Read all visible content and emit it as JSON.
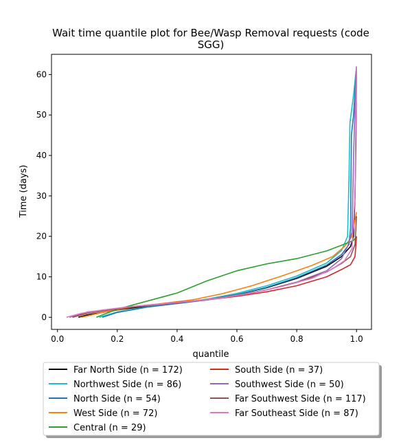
{
  "chart_data": {
    "type": "line",
    "title_lines": [
      "Wait time quantile plot for Bee/Wasp Removal  requests (code",
      "SGG)"
    ],
    "xlabel": "quantile",
    "ylabel": "Time (days)",
    "xlim": [
      -0.02,
      1.05
    ],
    "ylim": [
      -3,
      65
    ],
    "xticks": [
      0.0,
      0.2,
      0.4,
      0.6,
      0.8,
      1.0
    ],
    "xtick_labels": [
      "0.0",
      "0.2",
      "0.4",
      "0.6",
      "0.8",
      "1.0"
    ],
    "yticks": [
      0,
      10,
      20,
      30,
      40,
      50,
      60
    ],
    "ytick_labels": [
      "0",
      "10",
      "20",
      "30",
      "40",
      "50",
      "60"
    ],
    "legend_placement": "below plot, two columns",
    "series": [
      {
        "name": "Far North Side (n = 172)",
        "color": "#000000",
        "points": [
          [
            0.07,
            0
          ],
          [
            0.1,
            0.6
          ],
          [
            0.2,
            1.8
          ],
          [
            0.3,
            2.8
          ],
          [
            0.4,
            3.5
          ],
          [
            0.5,
            4.3
          ],
          [
            0.6,
            5.6
          ],
          [
            0.7,
            7.3
          ],
          [
            0.8,
            9.6
          ],
          [
            0.9,
            12.6
          ],
          [
            0.95,
            15
          ],
          [
            0.98,
            17.5
          ],
          [
            0.99,
            20
          ],
          [
            0.995,
            30
          ],
          [
            0.998,
            45
          ],
          [
            1.0,
            62
          ]
        ]
      },
      {
        "name": "Northwest Side (n = 86)",
        "color": "#17becf",
        "points": [
          [
            0.14,
            0
          ],
          [
            0.2,
            1.3
          ],
          [
            0.3,
            2.6
          ],
          [
            0.4,
            3.5
          ],
          [
            0.5,
            4.5
          ],
          [
            0.6,
            5.9
          ],
          [
            0.7,
            7.8
          ],
          [
            0.8,
            10.2
          ],
          [
            0.9,
            13.4
          ],
          [
            0.95,
            16.5
          ],
          [
            0.97,
            20
          ],
          [
            0.975,
            35
          ],
          [
            0.978,
            48
          ],
          [
            0.99,
            55
          ],
          [
            1.0,
            62
          ]
        ]
      },
      {
        "name": "North Side (n = 54)",
        "color": "#1f77b4",
        "points": [
          [
            0.15,
            0
          ],
          [
            0.2,
            1.2
          ],
          [
            0.3,
            2.5
          ],
          [
            0.4,
            3.4
          ],
          [
            0.5,
            4.3
          ],
          [
            0.6,
            5.6
          ],
          [
            0.7,
            7.4
          ],
          [
            0.8,
            9.8
          ],
          [
            0.9,
            12.9
          ],
          [
            0.95,
            15.5
          ],
          [
            0.975,
            18
          ],
          [
            0.98,
            22
          ],
          [
            0.983,
            45
          ],
          [
            0.99,
            50
          ],
          [
            1.0,
            62
          ]
        ]
      },
      {
        "name": "West Side (n = 72)",
        "color": "#ff7f0e",
        "points": [
          [
            0.08,
            0
          ],
          [
            0.15,
            1.2
          ],
          [
            0.25,
            2.5
          ],
          [
            0.35,
            3.4
          ],
          [
            0.45,
            4.3
          ],
          [
            0.55,
            5.8
          ],
          [
            0.65,
            7.8
          ],
          [
            0.75,
            10.2
          ],
          [
            0.85,
            12.8
          ],
          [
            0.92,
            15
          ],
          [
            0.96,
            17.5
          ],
          [
            0.985,
            20
          ],
          [
            0.995,
            24
          ],
          [
            1.0,
            26
          ]
        ]
      },
      {
        "name": "Central (n = 29)",
        "color": "#2ca02c",
        "points": [
          [
            0.13,
            0
          ],
          [
            0.2,
            2
          ],
          [
            0.3,
            4
          ],
          [
            0.4,
            6
          ],
          [
            0.5,
            9
          ],
          [
            0.6,
            11.5
          ],
          [
            0.7,
            13.2
          ],
          [
            0.8,
            14.5
          ],
          [
            0.9,
            16.4
          ],
          [
            0.95,
            17.8
          ],
          [
            0.99,
            19
          ],
          [
            1.0,
            20
          ]
        ]
      },
      {
        "name": "South Side (n = 37)",
        "color": "#d62728",
        "points": [
          [
            0.05,
            0
          ],
          [
            0.1,
            1
          ],
          [
            0.2,
            2.1
          ],
          [
            0.3,
            3
          ],
          [
            0.4,
            3.7
          ],
          [
            0.5,
            4.3
          ],
          [
            0.6,
            5.2
          ],
          [
            0.7,
            6.3
          ],
          [
            0.8,
            7.8
          ],
          [
            0.9,
            10
          ],
          [
            0.95,
            11.8
          ],
          [
            0.98,
            13
          ],
          [
            0.995,
            15
          ],
          [
            1.0,
            20
          ]
        ]
      },
      {
        "name": "Southwest Side (n = 50)",
        "color": "#9467bd",
        "points": [
          [
            0.04,
            0
          ],
          [
            0.1,
            1.3
          ],
          [
            0.2,
            2.2
          ],
          [
            0.3,
            3
          ],
          [
            0.4,
            3.6
          ],
          [
            0.5,
            4.3
          ],
          [
            0.6,
            5.4
          ],
          [
            0.7,
            6.8
          ],
          [
            0.8,
            8.7
          ],
          [
            0.9,
            11.5
          ],
          [
            0.95,
            14.5
          ],
          [
            0.97,
            17.5
          ],
          [
            0.985,
            21
          ],
          [
            0.99,
            40
          ],
          [
            0.995,
            52
          ],
          [
            1.0,
            62
          ]
        ]
      },
      {
        "name": "Far Southwest Side (n = 117)",
        "color": "#8c564b",
        "points": [
          [
            0.05,
            0
          ],
          [
            0.1,
            1.1
          ],
          [
            0.2,
            2.1
          ],
          [
            0.3,
            2.9
          ],
          [
            0.4,
            3.6
          ],
          [
            0.5,
            4.4
          ],
          [
            0.6,
            5.4
          ],
          [
            0.7,
            6.8
          ],
          [
            0.8,
            8.6
          ],
          [
            0.9,
            11.2
          ],
          [
            0.95,
            13.3
          ],
          [
            0.98,
            15
          ],
          [
            0.995,
            18
          ],
          [
            1.0,
            25
          ]
        ]
      },
      {
        "name": "Far Southeast Side (n = 87)",
        "color": "#e377c2",
        "points": [
          [
            0.03,
            0
          ],
          [
            0.08,
            1
          ],
          [
            0.15,
            1.8
          ],
          [
            0.25,
            2.7
          ],
          [
            0.35,
            3.3
          ],
          [
            0.45,
            4
          ],
          [
            0.55,
            4.8
          ],
          [
            0.65,
            6
          ],
          [
            0.75,
            7.6
          ],
          [
            0.85,
            9.6
          ],
          [
            0.92,
            12
          ],
          [
            0.96,
            14
          ],
          [
            0.985,
            17
          ],
          [
            0.995,
            30
          ],
          [
            1.0,
            62
          ]
        ]
      }
    ]
  }
}
